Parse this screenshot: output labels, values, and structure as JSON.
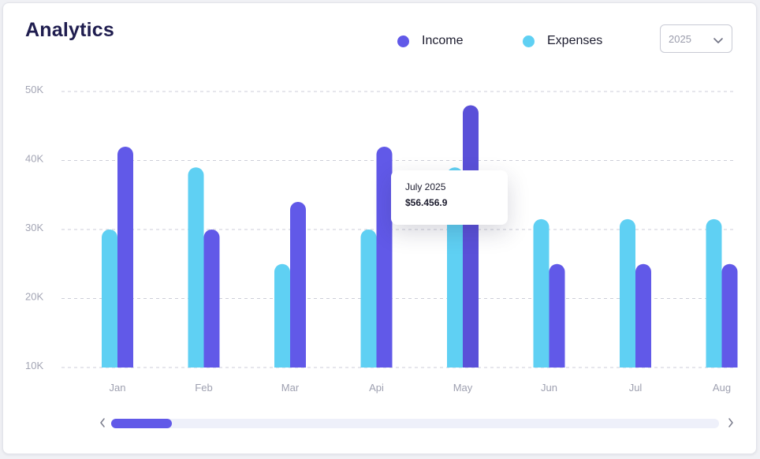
{
  "header": {
    "title": "Analytics",
    "year_select": {
      "value": "2025",
      "icon": "chevron-down-icon"
    }
  },
  "legend": [
    {
      "label": "Income",
      "color": "#6159e8"
    },
    {
      "label": "Expenses",
      "color": "#5fd0f3"
    }
  ],
  "tooltip": {
    "title": "July 2025",
    "value": "$56.456.9"
  },
  "scrollbar": {
    "left_icon": "chevron-left-icon",
    "right_icon": "chevron-right-icon",
    "position": 0.0,
    "visible_fraction": 0.1
  },
  "chart_data": {
    "type": "bar",
    "categories": [
      "Jan",
      "Feb",
      "Mar",
      "Api",
      "May",
      "Jun",
      "Jul",
      "Aug"
    ],
    "series": [
      {
        "name": "Expenses",
        "color": "#5fd0f3",
        "values": [
          30,
          39,
          25,
          30,
          39,
          31.5,
          31.5,
          31.5
        ]
      },
      {
        "name": "Income",
        "color": "#6159e8",
        "values": [
          42,
          30,
          34,
          42,
          48,
          25,
          25,
          25
        ]
      }
    ],
    "y_ticks": [
      "10K",
      "20K",
      "30K",
      "40K",
      "50K"
    ],
    "y_tick_values": [
      10,
      20,
      30,
      40,
      50
    ],
    "ylim": [
      10,
      50
    ],
    "grid": "dashed horizontal",
    "highlighted_category": "May"
  }
}
